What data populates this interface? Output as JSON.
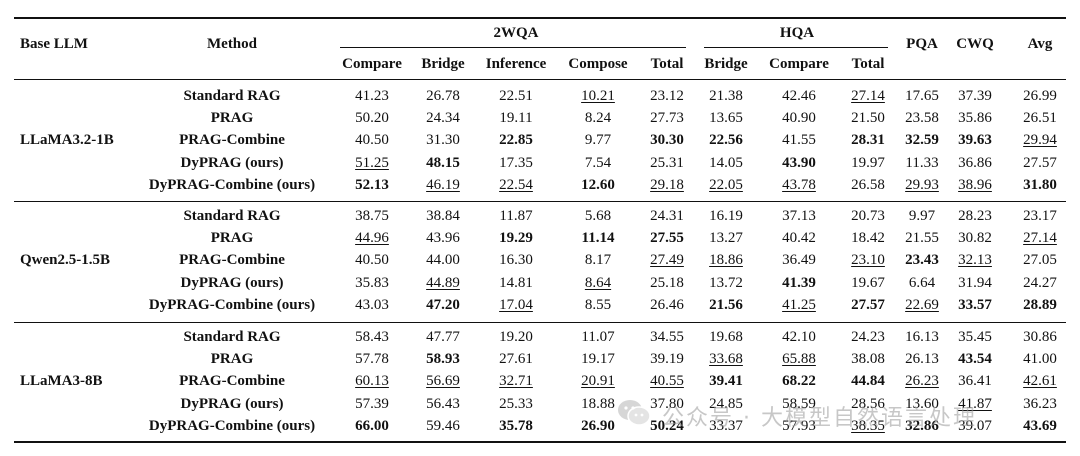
{
  "header": {
    "base_llm": "Base LLM",
    "method": "Method",
    "groups": [
      {
        "label": "2WQA",
        "cols": [
          "Compare",
          "Bridge",
          "Inference",
          "Compose",
          "Total"
        ]
      },
      {
        "label": "HQA",
        "cols": [
          "Bridge",
          "Compare",
          "Total"
        ]
      }
    ],
    "single_cols": [
      "PQA",
      "CWQ",
      "Avg"
    ]
  },
  "blocks": [
    {
      "model": "LLaMA3.2-1B",
      "rows": [
        {
          "method": "Standard RAG",
          "values": [
            "41.23",
            "26.78",
            "22.51",
            "10.21",
            "23.12",
            "21.38",
            "42.46",
            "27.14",
            "17.65",
            "37.39",
            "26.99"
          ],
          "bold": [],
          "underline": [
            3,
            7
          ]
        },
        {
          "method": "PRAG",
          "values": [
            "50.20",
            "24.34",
            "19.11",
            "8.24",
            "27.73",
            "13.65",
            "40.90",
            "21.50",
            "23.58",
            "35.86",
            "26.51"
          ],
          "bold": [],
          "underline": []
        },
        {
          "method": "PRAG-Combine",
          "values": [
            "40.50",
            "31.30",
            "22.85",
            "9.77",
            "30.30",
            "22.56",
            "41.55",
            "28.31",
            "32.59",
            "39.63",
            "29.94"
          ],
          "bold": [
            2,
            4,
            5,
            7,
            8,
            9
          ],
          "underline": [
            10
          ]
        },
        {
          "method": "DyPRAG (ours)",
          "values": [
            "51.25",
            "48.15",
            "17.35",
            "7.54",
            "25.31",
            "14.05",
            "43.90",
            "19.97",
            "11.33",
            "36.86",
            "27.57"
          ],
          "bold": [
            1,
            6
          ],
          "underline": [
            0
          ]
        },
        {
          "method": "DyPRAG-Combine (ours)",
          "values": [
            "52.13",
            "46.19",
            "22.54",
            "12.60",
            "29.18",
            "22.05",
            "43.78",
            "26.58",
            "29.93",
            "38.96",
            "31.80"
          ],
          "bold": [
            0,
            3,
            10
          ],
          "underline": [
            1,
            2,
            4,
            5,
            6,
            8,
            9
          ]
        }
      ]
    },
    {
      "model": "Qwen2.5-1.5B",
      "rows": [
        {
          "method": "Standard RAG",
          "values": [
            "38.75",
            "38.84",
            "11.87",
            "5.68",
            "24.31",
            "16.19",
            "37.13",
            "20.73",
            "9.97",
            "28.23",
            "23.17"
          ],
          "bold": [],
          "underline": []
        },
        {
          "method": "PRAG",
          "values": [
            "44.96",
            "43.96",
            "19.29",
            "11.14",
            "27.55",
            "13.27",
            "40.42",
            "18.42",
            "21.55",
            "30.82",
            "27.14"
          ],
          "bold": [
            2,
            3,
            4
          ],
          "underline": [
            0,
            10
          ]
        },
        {
          "method": "PRAG-Combine",
          "values": [
            "40.50",
            "44.00",
            "16.30",
            "8.17",
            "27.49",
            "18.86",
            "36.49",
            "23.10",
            "23.43",
            "32.13",
            "27.05"
          ],
          "bold": [
            8
          ],
          "underline": [
            4,
            5,
            7,
            9
          ]
        },
        {
          "method": "DyPRAG (ours)",
          "values": [
            "35.83",
            "44.89",
            "14.81",
            "8.64",
            "25.18",
            "13.72",
            "41.39",
            "19.67",
            "6.64",
            "31.94",
            "24.27"
          ],
          "bold": [
            6
          ],
          "underline": [
            1,
            3
          ]
        },
        {
          "method": "DyPRAG-Combine (ours)",
          "values": [
            "43.03",
            "47.20",
            "17.04",
            "8.55",
            "26.46",
            "21.56",
            "41.25",
            "27.57",
            "22.69",
            "33.57",
            "28.89"
          ],
          "bold": [
            1,
            5,
            7,
            9,
            10
          ],
          "underline": [
            2,
            6,
            8
          ]
        }
      ]
    },
    {
      "model": "LLaMA3-8B",
      "rows": [
        {
          "method": "Standard RAG",
          "values": [
            "58.43",
            "47.77",
            "19.20",
            "11.07",
            "34.55",
            "19.68",
            "42.10",
            "24.23",
            "16.13",
            "35.45",
            "30.86"
          ],
          "bold": [],
          "underline": []
        },
        {
          "method": "PRAG",
          "values": [
            "57.78",
            "58.93",
            "27.61",
            "19.17",
            "39.19",
            "33.68",
            "65.88",
            "38.08",
            "26.13",
            "43.54",
            "41.00"
          ],
          "bold": [
            1,
            9
          ],
          "underline": [
            5,
            6
          ]
        },
        {
          "method": "PRAG-Combine",
          "values": [
            "60.13",
            "56.69",
            "32.71",
            "20.91",
            "40.55",
            "39.41",
            "68.22",
            "44.84",
            "26.23",
            "36.41",
            "42.61"
          ],
          "bold": [
            5,
            6,
            7
          ],
          "underline": [
            0,
            1,
            2,
            3,
            4,
            8,
            10
          ]
        },
        {
          "method": "DyPRAG (ours)",
          "values": [
            "57.39",
            "56.43",
            "25.33",
            "18.88",
            "37.80",
            "24.85",
            "58.59",
            "28.56",
            "13.60",
            "41.87",
            "36.23"
          ],
          "bold": [],
          "underline": [
            9
          ]
        },
        {
          "method": "DyPRAG-Combine (ours)",
          "values": [
            "66.00",
            "59.46",
            "35.78",
            "26.90",
            "50.24",
            "33.37",
            "57.93",
            "38.35",
            "32.86",
            "39.07",
            "43.69"
          ],
          "bold": [
            0,
            2,
            3,
            4,
            8,
            10
          ],
          "underline": [
            7
          ]
        }
      ]
    }
  ],
  "watermark": {
    "text": "公众号 · 大模型自然语言处理",
    "icon": "wechat-logo-icon"
  }
}
